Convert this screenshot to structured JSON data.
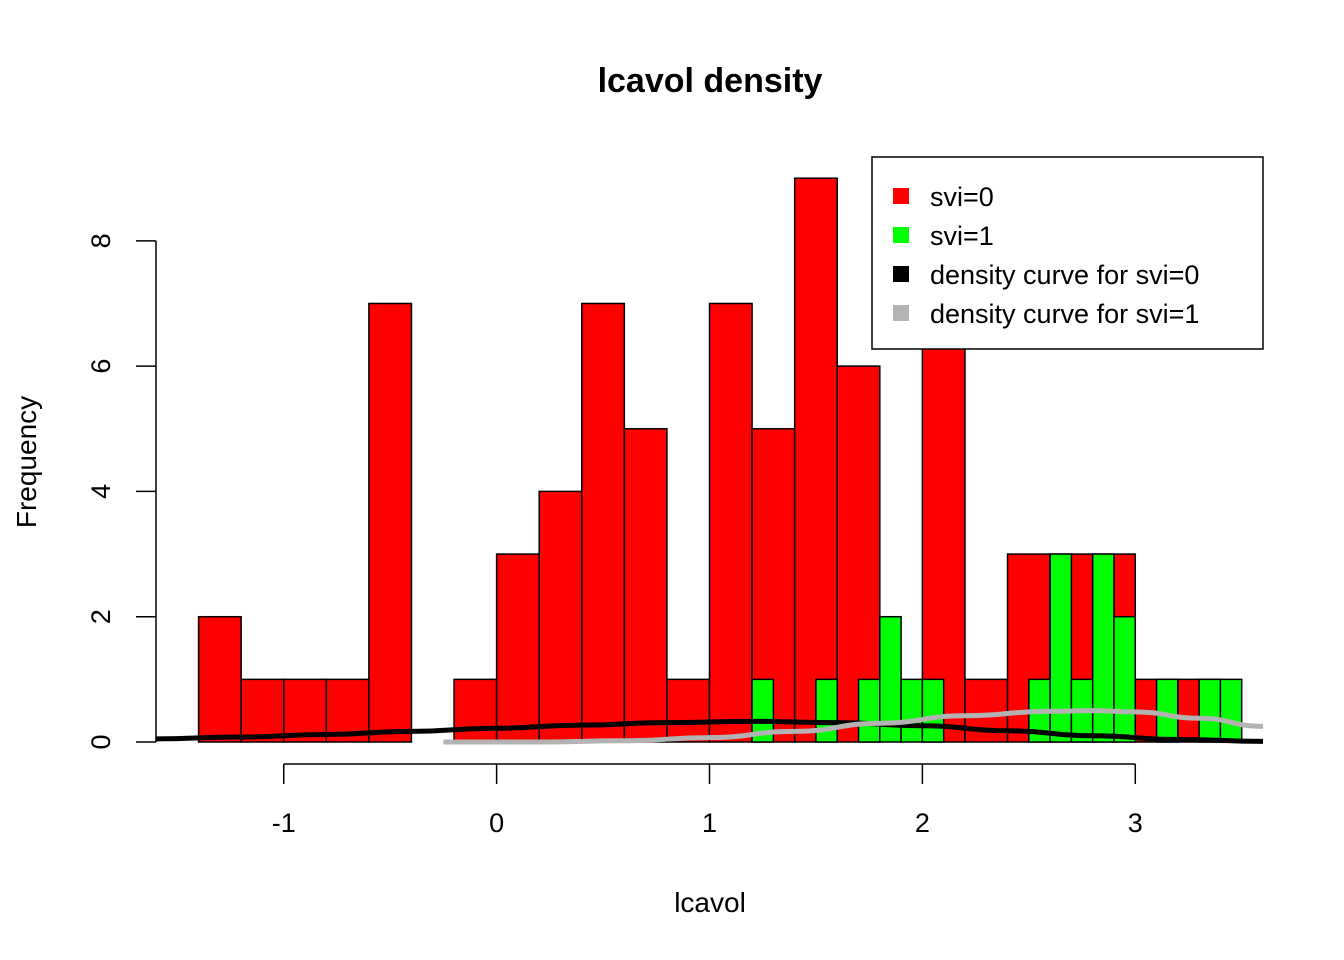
{
  "chart_data": {
    "type": "bar",
    "title": "lcavol density",
    "xlabel": "lcavol",
    "ylabel": "Frequency",
    "xlim": [
      -1.6,
      3.6
    ],
    "ylim": [
      0,
      9.45
    ],
    "x_axis_range": [
      -1,
      3
    ],
    "x_ticks": [
      -1,
      0,
      1,
      2,
      3
    ],
    "y_ticks": [
      0,
      2,
      4,
      6,
      8
    ],
    "bin_width": 0.2,
    "grid": false,
    "legend_position": "top-right",
    "series": [
      {
        "name": "svi=0",
        "color": "#ff0000",
        "bins": [
          {
            "start": -1.4,
            "end": -1.2,
            "count": 2
          },
          {
            "start": -1.2,
            "end": -1.0,
            "count": 1
          },
          {
            "start": -1.0,
            "end": -0.8,
            "count": 1
          },
          {
            "start": -0.8,
            "end": -0.6,
            "count": 1
          },
          {
            "start": -0.6,
            "end": -0.4,
            "count": 7
          },
          {
            "start": -0.2,
            "end": 0.0,
            "count": 1
          },
          {
            "start": 0.0,
            "end": 0.2,
            "count": 3
          },
          {
            "start": 0.2,
            "end": 0.4,
            "count": 4
          },
          {
            "start": 0.4,
            "end": 0.6,
            "count": 7
          },
          {
            "start": 0.6,
            "end": 0.8,
            "count": 5
          },
          {
            "start": 0.8,
            "end": 1.0,
            "count": 1
          },
          {
            "start": 1.0,
            "end": 1.2,
            "count": 7
          },
          {
            "start": 1.2,
            "end": 1.4,
            "count": 5
          },
          {
            "start": 1.4,
            "end": 1.6,
            "count": 9
          },
          {
            "start": 1.6,
            "end": 1.8,
            "count": 6
          },
          {
            "start": 2.0,
            "end": 2.2,
            "count": 7
          },
          {
            "start": 2.2,
            "end": 2.4,
            "count": 1
          },
          {
            "start": 2.4,
            "end": 2.6,
            "count": 3
          },
          {
            "start": 2.6,
            "end": 2.8,
            "count": 3
          },
          {
            "start": 2.8,
            "end": 3.0,
            "count": 3
          },
          {
            "start": 3.0,
            "end": 3.2,
            "count": 1
          },
          {
            "start": 3.2,
            "end": 3.4,
            "count": 1
          }
        ]
      },
      {
        "name": "svi=1",
        "color": "#00ff00",
        "bins": [
          {
            "start": 1.2,
            "end": 1.3,
            "count": 1
          },
          {
            "start": 1.5,
            "end": 1.6,
            "count": 1
          },
          {
            "start": 1.7,
            "end": 1.8,
            "count": 1
          },
          {
            "start": 1.8,
            "end": 1.9,
            "count": 2
          },
          {
            "start": 1.9,
            "end": 2.0,
            "count": 1
          },
          {
            "start": 2.0,
            "end": 2.1,
            "count": 1
          },
          {
            "start": 2.5,
            "end": 2.6,
            "count": 1
          },
          {
            "start": 2.6,
            "end": 2.7,
            "count": 3
          },
          {
            "start": 2.7,
            "end": 2.8,
            "count": 1
          },
          {
            "start": 2.8,
            "end": 2.9,
            "count": 3
          },
          {
            "start": 2.9,
            "end": 3.0,
            "count": 2
          },
          {
            "start": 3.1,
            "end": 3.2,
            "count": 1
          },
          {
            "start": 3.3,
            "end": 3.4,
            "count": 1
          },
          {
            "start": 3.4,
            "end": 3.5,
            "count": 1
          }
        ]
      }
    ],
    "curves": [
      {
        "name": "density curve for svi=0",
        "color": "#000000",
        "points": [
          [
            -1.6,
            0.05
          ],
          [
            -1.2,
            0.08
          ],
          [
            -0.8,
            0.12
          ],
          [
            -0.4,
            0.17
          ],
          [
            0.0,
            0.22
          ],
          [
            0.4,
            0.27
          ],
          [
            0.8,
            0.31
          ],
          [
            1.2,
            0.33
          ],
          [
            1.6,
            0.31
          ],
          [
            2.0,
            0.26
          ],
          [
            2.4,
            0.18
          ],
          [
            2.8,
            0.1
          ],
          [
            3.2,
            0.04
          ],
          [
            3.6,
            0.01
          ]
        ]
      },
      {
        "name": "density curve for svi=1",
        "color": "#b3b3b3",
        "points": [
          [
            -0.25,
            0.0
          ],
          [
            0.2,
            0.0
          ],
          [
            0.6,
            0.02
          ],
          [
            1.0,
            0.07
          ],
          [
            1.4,
            0.17
          ],
          [
            1.8,
            0.3
          ],
          [
            2.2,
            0.42
          ],
          [
            2.6,
            0.49
          ],
          [
            2.8,
            0.5
          ],
          [
            3.0,
            0.48
          ],
          [
            3.3,
            0.38
          ],
          [
            3.6,
            0.25
          ]
        ]
      }
    ],
    "legend": [
      {
        "label": "svi=0",
        "color": "#ff0000"
      },
      {
        "label": "svi=1",
        "color": "#00ff00"
      },
      {
        "label": "density curve for svi=0",
        "color": "#000000"
      },
      {
        "label": "density curve for svi=1",
        "color": "#b3b3b3"
      }
    ]
  }
}
